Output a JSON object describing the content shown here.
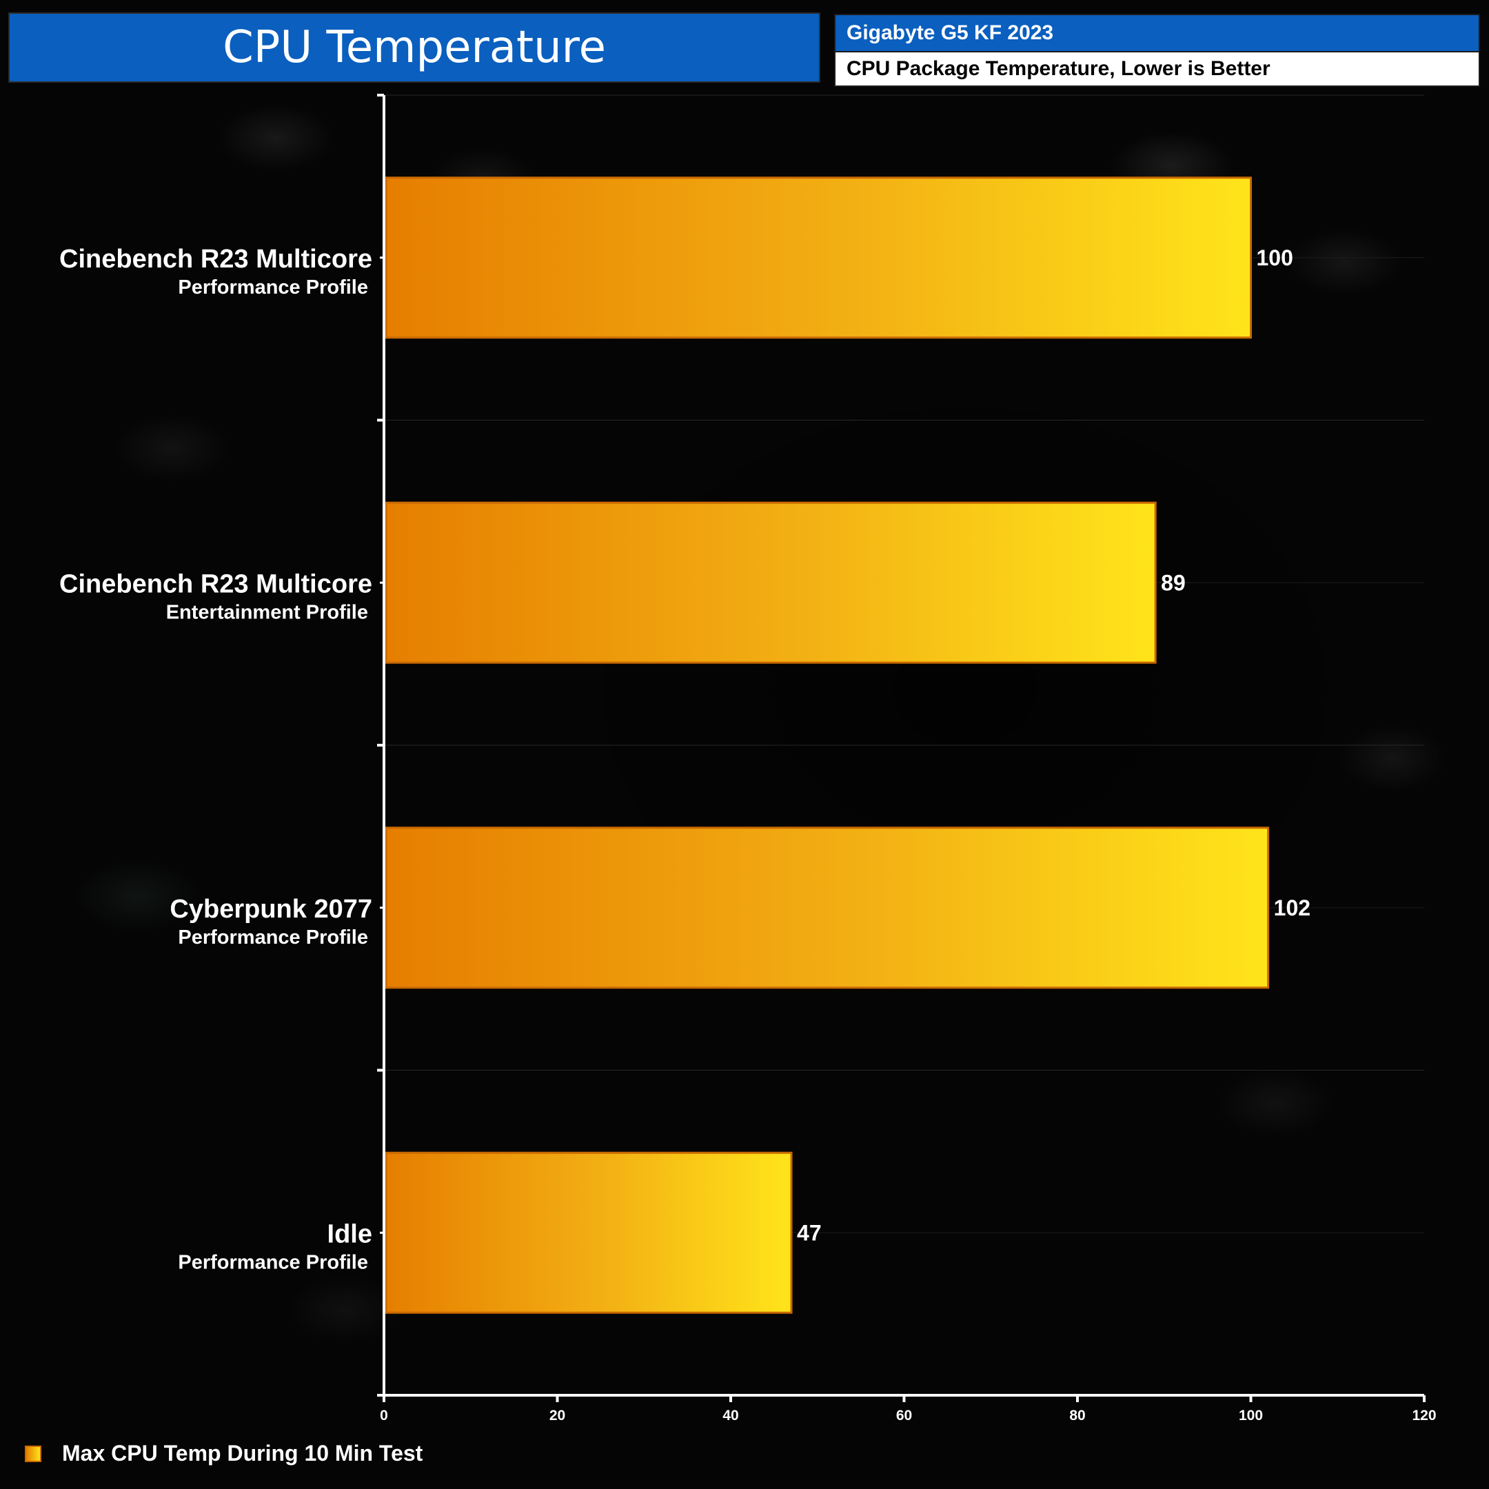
{
  "header": {
    "title": "CPU Temperature",
    "device": "Gigabyte G5 KF 2023",
    "metric": "CPU Package Temperature, Lower is Better"
  },
  "colors": {
    "header_blue": "#0a5fbf",
    "bar_start": "#e67e00",
    "bar_end": "#ffe41a",
    "bar_border": "#c96a00",
    "axis": "#ffffff"
  },
  "chart_data": {
    "type": "bar",
    "orientation": "horizontal",
    "categories": [
      {
        "name": "Cinebench R23 Multicore",
        "sub": "Performance Profile"
      },
      {
        "name": "Cinebench R23 Multicore",
        "sub": "Entertainment Profile"
      },
      {
        "name": "Cyberpunk 2077",
        "sub": "Performance Profile"
      },
      {
        "name": "Idle",
        "sub": "Performance Profile"
      }
    ],
    "series": [
      {
        "name": "Max CPU Temp During 10 Min Test",
        "values": [
          100,
          89,
          102,
          47
        ]
      }
    ],
    "xlim": [
      0,
      120
    ],
    "xticks": [
      0,
      20,
      40,
      60,
      80,
      100,
      120
    ],
    "legend_position": "bottom-left",
    "grid": true
  }
}
